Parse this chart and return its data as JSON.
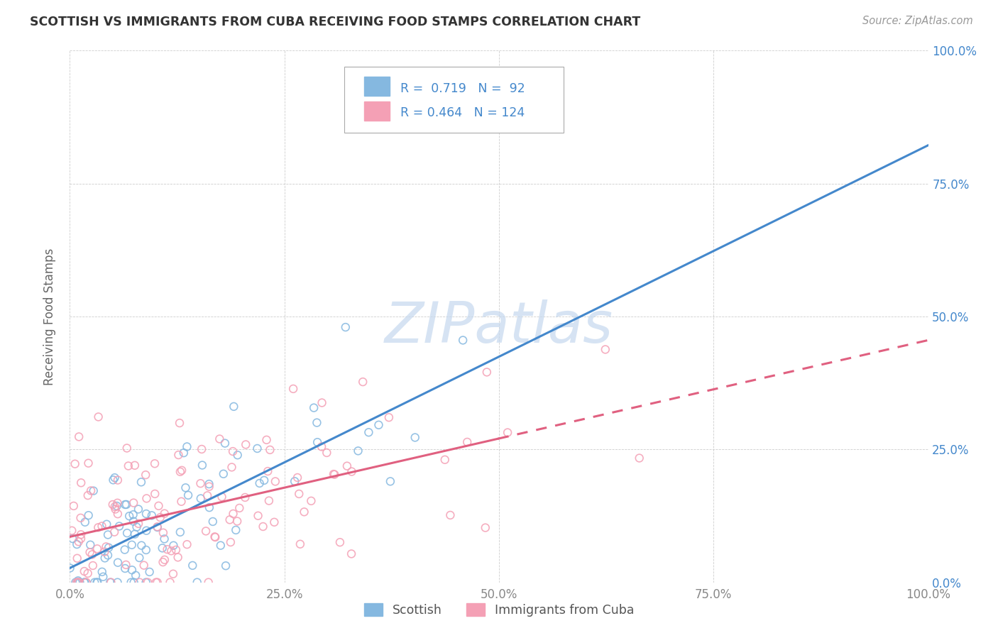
{
  "title": "SCOTTISH VS IMMIGRANTS FROM CUBA RECEIVING FOOD STAMPS CORRELATION CHART",
  "source": "Source: ZipAtlas.com",
  "ylabel": "Receiving Food Stamps",
  "scottish_R": 0.719,
  "scottish_N": 92,
  "cuba_R": 0.464,
  "cuba_N": 124,
  "scottish_color": "#85b8e0",
  "cuba_color": "#f4a0b5",
  "scottish_line_color": "#4488cc",
  "cuba_line_color": "#e06080",
  "watermark_color": "#c5d8ee",
  "background_color": "#ffffff",
  "grid_color": "#c8c8c8",
  "legend_label_scottish": "Scottish",
  "legend_label_cuba": "Immigrants from Cuba",
  "tick_label_color_right": "#4488cc",
  "tick_label_color_bottom": "#888888",
  "title_color": "#333333",
  "source_color": "#999999",
  "ylabel_color": "#666666"
}
